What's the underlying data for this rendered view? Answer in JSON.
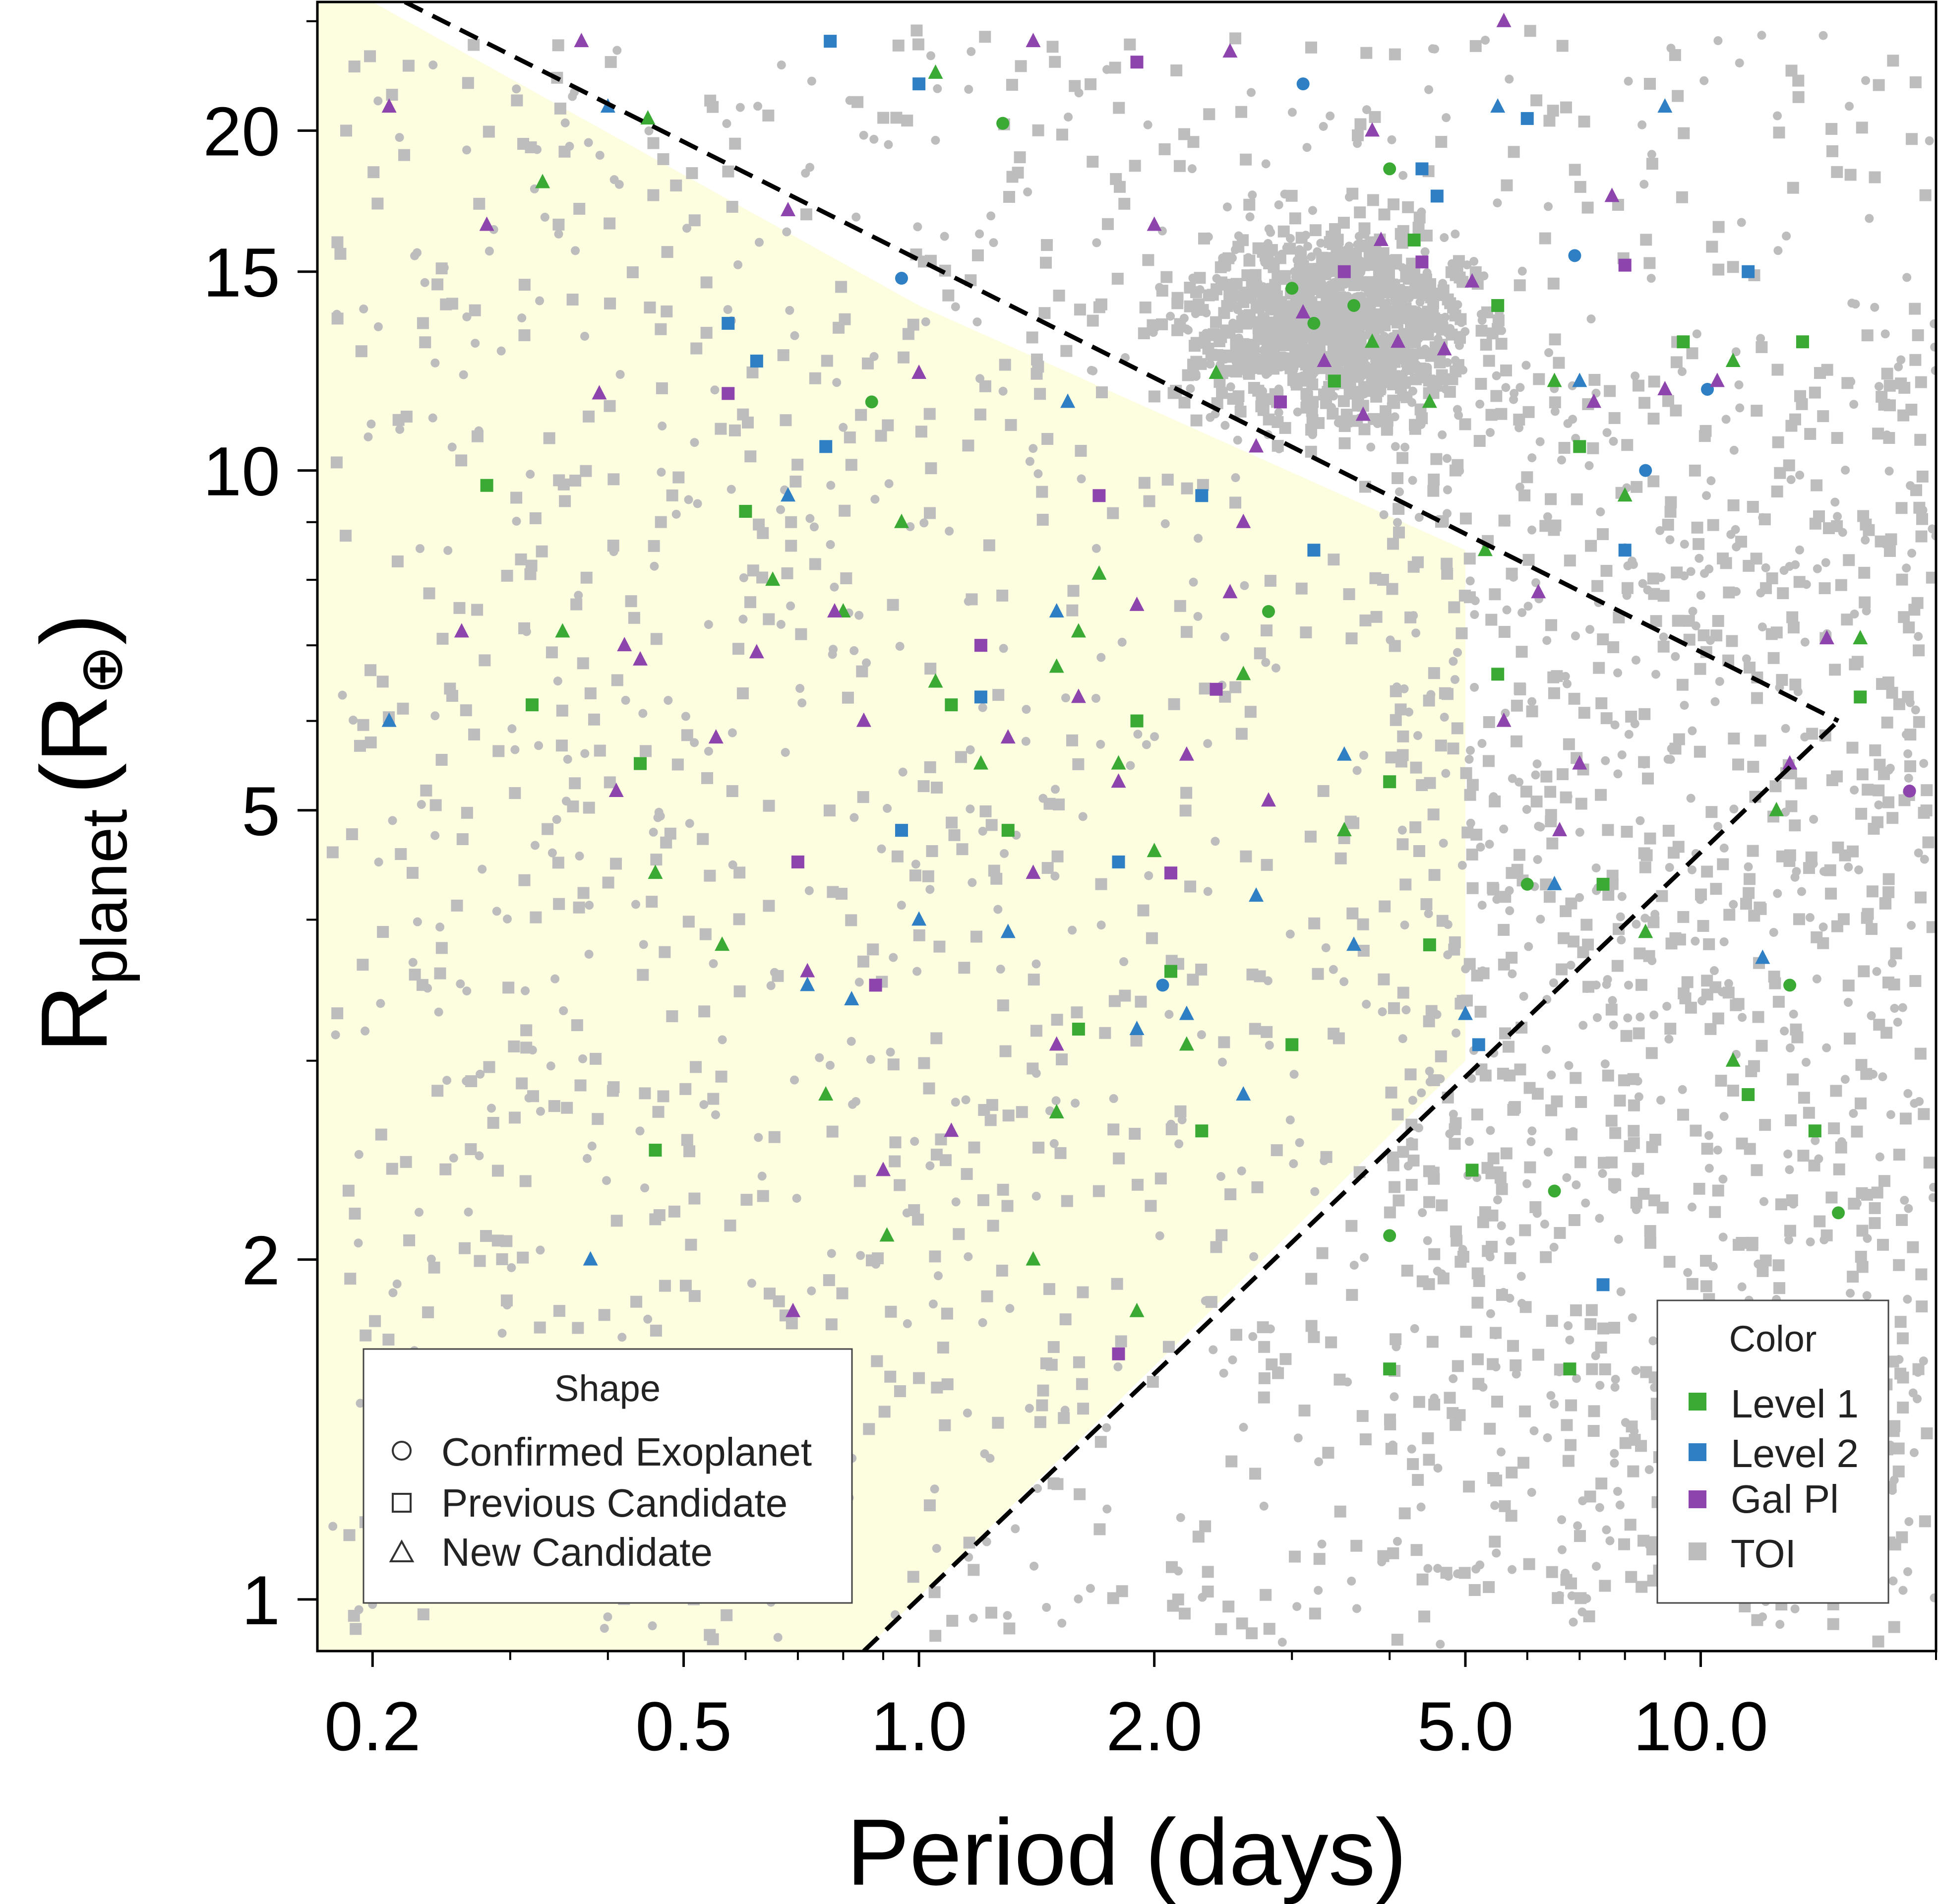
{
  "chart_data": {
    "type": "scatter",
    "xlabel": "Period (days)",
    "ylabel_main": "R",
    "ylabel_sub": "planet",
    "ylabel_unit_open": "(R",
    "ylabel_unit_sym": "⊕",
    "ylabel_unit_close": ")",
    "x_scale": "log",
    "y_scale": "log",
    "xlim": [
      0.17,
      20
    ],
    "ylim": [
      0.9,
      26
    ],
    "x_ticks": [
      0.2,
      0.5,
      1.0,
      2.0,
      5.0,
      10.0
    ],
    "x_tick_labels": [
      "0.2",
      "0.5",
      "1.0",
      "2.0",
      "5.0",
      "10.0"
    ],
    "y_ticks": [
      1,
      2,
      5,
      10,
      15,
      20
    ],
    "y_tick_labels": [
      "1",
      "2",
      "5",
      "10",
      "15",
      "20"
    ],
    "shaded_region_polygon": [
      [
        0.17,
        0.9
      ],
      [
        0.17,
        26
      ],
      [
        0.2,
        26
      ],
      [
        1.0,
        14
      ],
      [
        5.0,
        8.5
      ],
      [
        5.0,
        3.0
      ],
      [
        0.85,
        0.9
      ]
    ],
    "dashed_lines": [
      {
        "name": "upper-boundary",
        "points": [
          [
            0.22,
            26
          ],
          [
            15.0,
            6.0
          ]
        ]
      },
      {
        "name": "lower-boundary",
        "points": [
          [
            0.85,
            0.9
          ],
          [
            15.0,
            6.0
          ]
        ]
      }
    ],
    "series": [
      {
        "name": "Level 1",
        "color": "#3aaa35",
        "points": [
          [
            0.45,
            20.5,
            "tri"
          ],
          [
            0.33,
            18,
            "tri"
          ],
          [
            1.28,
            20.3,
            "circ"
          ],
          [
            1.05,
            22.5,
            "tri"
          ],
          [
            0.28,
            9.7,
            "sq"
          ],
          [
            0.32,
            6.2,
            "sq"
          ],
          [
            0.35,
            7.2,
            "tri"
          ],
          [
            0.44,
            5.5,
            "sq"
          ],
          [
            0.46,
            4.4,
            "tri"
          ],
          [
            0.56,
            3.8,
            "tri"
          ],
          [
            0.6,
            9.2,
            "sq"
          ],
          [
            0.65,
            8.0,
            "tri"
          ],
          [
            0.8,
            7.5,
            "tri"
          ],
          [
            0.87,
            11.5,
            "circ"
          ],
          [
            0.95,
            9.0,
            "tri"
          ],
          [
            1.05,
            6.5,
            "tri"
          ],
          [
            1.1,
            6.2,
            "sq"
          ],
          [
            1.2,
            5.5,
            "tri"
          ],
          [
            1.3,
            4.8,
            "sq"
          ],
          [
            1.5,
            6.7,
            "tri"
          ],
          [
            1.6,
            7.2,
            "tri"
          ],
          [
            1.7,
            8.1,
            "tri"
          ],
          [
            1.8,
            5.5,
            "tri"
          ],
          [
            1.9,
            6.0,
            "sq"
          ],
          [
            2.0,
            4.6,
            "tri"
          ],
          [
            2.1,
            3.6,
            "sq"
          ],
          [
            2.2,
            3.1,
            "tri"
          ],
          [
            2.3,
            2.6,
            "sq"
          ],
          [
            1.6,
            3.2,
            "sq"
          ],
          [
            1.5,
            2.7,
            "tri"
          ],
          [
            0.76,
            2.8,
            "tri"
          ],
          [
            0.91,
            2.1,
            "tri"
          ],
          [
            1.4,
            2.0,
            "tri"
          ],
          [
            1.9,
            1.8,
            "tri"
          ],
          [
            0.46,
            2.5,
            "sq"
          ],
          [
            2.6,
            6.6,
            "tri"
          ],
          [
            2.8,
            7.5,
            "circ"
          ],
          [
            3.0,
            3.1,
            "sq"
          ],
          [
            3.5,
            4.8,
            "tri"
          ],
          [
            4.0,
            5.3,
            "sq"
          ],
          [
            4.5,
            3.8,
            "sq"
          ],
          [
            5.1,
            2.4,
            "sq"
          ],
          [
            5.5,
            6.6,
            "sq"
          ],
          [
            6.0,
            4.3,
            "circ"
          ],
          [
            6.5,
            2.3,
            "circ"
          ],
          [
            6.8,
            1.6,
            "sq"
          ],
          [
            7.5,
            4.3,
            "sq"
          ],
          [
            8.5,
            3.9,
            "tri"
          ],
          [
            11.0,
            3.0,
            "tri"
          ],
          [
            11.5,
            2.8,
            "sq"
          ],
          [
            13.0,
            3.5,
            "circ"
          ],
          [
            14.0,
            2.6,
            "sq"
          ],
          [
            15.0,
            2.2,
            "circ"
          ],
          [
            4.0,
            1.6,
            "sq"
          ],
          [
            4.0,
            2.1,
            "circ"
          ],
          [
            2.4,
            12.2,
            "tri"
          ],
          [
            3.0,
            14.5,
            "circ"
          ],
          [
            3.2,
            13.5,
            "circ"
          ],
          [
            3.4,
            12.0,
            "sq"
          ],
          [
            3.6,
            14.0,
            "circ"
          ],
          [
            3.8,
            13.0,
            "tri"
          ],
          [
            4.0,
            18.5,
            "circ"
          ],
          [
            4.3,
            16.0,
            "sq"
          ],
          [
            4.5,
            11.5,
            "tri"
          ],
          [
            5.5,
            14.0,
            "sq"
          ],
          [
            6.5,
            12.0,
            "tri"
          ],
          [
            7.0,
            10.5,
            "sq"
          ],
          [
            8.0,
            9.5,
            "tri"
          ],
          [
            9.5,
            13.0,
            "sq"
          ],
          [
            11.0,
            12.5,
            "tri"
          ],
          [
            13.5,
            13.0,
            "sq"
          ],
          [
            16.0,
            6.3,
            "sq"
          ],
          [
            16.0,
            7.1,
            "tri"
          ],
          [
            12.5,
            5.0,
            "tri"
          ],
          [
            5.3,
            8.5,
            "tri"
          ]
        ]
      },
      {
        "name": "Level 2",
        "color": "#2e7fc4",
        "points": [
          [
            0.21,
            6.0,
            "tri"
          ],
          [
            0.4,
            21,
            "tri"
          ],
          [
            0.38,
            2.0,
            "tri"
          ],
          [
            0.57,
            13.5,
            "sq"
          ],
          [
            0.62,
            12.5,
            "sq"
          ],
          [
            0.68,
            9.5,
            "tri"
          ],
          [
            0.72,
            3.5,
            "tri"
          ],
          [
            0.76,
            10.5,
            "sq"
          ],
          [
            0.82,
            3.4,
            "tri"
          ],
          [
            0.95,
            4.8,
            "sq"
          ],
          [
            0.95,
            14.8,
            "circ"
          ],
          [
            1.0,
            4.0,
            "tri"
          ],
          [
            1.2,
            6.3,
            "sq"
          ],
          [
            1.3,
            3.9,
            "tri"
          ],
          [
            1.5,
            7.5,
            "tri"
          ],
          [
            1.55,
            11.5,
            "tri"
          ],
          [
            1.8,
            4.5,
            "sq"
          ],
          [
            1.9,
            3.2,
            "tri"
          ],
          [
            2.05,
            3.5,
            "circ"
          ],
          [
            2.2,
            3.3,
            "tri"
          ],
          [
            2.3,
            9.5,
            "sq"
          ],
          [
            2.6,
            2.8,
            "tri"
          ],
          [
            2.7,
            4.2,
            "tri"
          ],
          [
            3.2,
            8.5,
            "sq"
          ],
          [
            3.5,
            5.6,
            "tri"
          ],
          [
            3.6,
            3.8,
            "tri"
          ],
          [
            4.4,
            18.5,
            "sq"
          ],
          [
            4.6,
            17.5,
            "sq"
          ],
          [
            5.5,
            21,
            "tri"
          ],
          [
            5.0,
            3.3,
            "tri"
          ],
          [
            5.2,
            3.1,
            "sq"
          ],
          [
            6.5,
            4.3,
            "tri"
          ],
          [
            6.0,
            20.5,
            "sq"
          ],
          [
            6.9,
            15.5,
            "circ"
          ],
          [
            7.0,
            12.0,
            "tri"
          ],
          [
            8.0,
            8.5,
            "sq"
          ],
          [
            8.5,
            10.0,
            "circ"
          ],
          [
            9.0,
            21,
            "tri"
          ],
          [
            10.2,
            11.8,
            "circ"
          ],
          [
            11.5,
            15.0,
            "sq"
          ],
          [
            12.0,
            3.7,
            "tri"
          ],
          [
            7.5,
            1.9,
            "sq"
          ],
          [
            0.77,
            24,
            "sq"
          ],
          [
            1.0,
            22,
            "sq"
          ],
          [
            3.1,
            22,
            "circ"
          ]
        ]
      },
      {
        "name": "Gal Pl",
        "color": "#8e44ad",
        "points": [
          [
            0.21,
            21,
            "tri"
          ],
          [
            0.28,
            16.5,
            "tri"
          ],
          [
            0.26,
            7.2,
            "tri"
          ],
          [
            0.39,
            11.7,
            "tri"
          ],
          [
            0.42,
            7.0,
            "tri"
          ],
          [
            0.44,
            6.8,
            "tri"
          ],
          [
            0.41,
            5.2,
            "tri"
          ],
          [
            0.55,
            5.8,
            "tri"
          ],
          [
            0.57,
            11.7,
            "sq"
          ],
          [
            0.62,
            6.9,
            "tri"
          ],
          [
            0.68,
            17,
            "tri"
          ],
          [
            0.7,
            4.5,
            "sq"
          ],
          [
            0.72,
            3.6,
            "tri"
          ],
          [
            0.78,
            7.5,
            "tri"
          ],
          [
            0.85,
            6.0,
            "tri"
          ],
          [
            0.88,
            3.5,
            "sq"
          ],
          [
            0.9,
            2.4,
            "tri"
          ],
          [
            1.0,
            12.2,
            "tri"
          ],
          [
            1.1,
            2.6,
            "tri"
          ],
          [
            1.2,
            7.0,
            "sq"
          ],
          [
            1.3,
            5.8,
            "tri"
          ],
          [
            1.4,
            4.4,
            "tri"
          ],
          [
            1.5,
            3.1,
            "tri"
          ],
          [
            1.6,
            6.3,
            "tri"
          ],
          [
            1.7,
            9.5,
            "sq"
          ],
          [
            1.8,
            5.3,
            "tri"
          ],
          [
            1.9,
            7.6,
            "tri"
          ],
          [
            2.0,
            16.5,
            "tri"
          ],
          [
            2.1,
            4.4,
            "sq"
          ],
          [
            2.2,
            5.6,
            "tri"
          ],
          [
            2.4,
            6.4,
            "sq"
          ],
          [
            2.5,
            7.8,
            "tri"
          ],
          [
            2.6,
            9.0,
            "tri"
          ],
          [
            2.7,
            10.5,
            "tri"
          ],
          [
            2.8,
            5.1,
            "tri"
          ],
          [
            2.9,
            11.5,
            "sq"
          ],
          [
            3.1,
            13.8,
            "tri"
          ],
          [
            3.3,
            12.5,
            "tri"
          ],
          [
            3.5,
            15.0,
            "sq"
          ],
          [
            3.7,
            11.2,
            "tri"
          ],
          [
            3.9,
            16.0,
            "tri"
          ],
          [
            4.1,
            13.0,
            "tri"
          ],
          [
            4.4,
            15.3,
            "sq"
          ],
          [
            4.7,
            12.8,
            "tri"
          ],
          [
            5.1,
            14.7,
            "tri"
          ],
          [
            5.6,
            6.0,
            "tri"
          ],
          [
            6.2,
            7.8,
            "tri"
          ],
          [
            6.6,
            4.8,
            "tri"
          ],
          [
            7.0,
            5.5,
            "tri"
          ],
          [
            7.3,
            11.5,
            "tri"
          ],
          [
            8.0,
            15.2,
            "sq"
          ],
          [
            9.0,
            11.8,
            "tri"
          ],
          [
            10.5,
            12.0,
            "tri"
          ],
          [
            13.0,
            5.5,
            "tri"
          ],
          [
            14.5,
            7.1,
            "tri"
          ],
          [
            18.5,
            5.2,
            "circ"
          ],
          [
            0.69,
            1.8,
            "tri"
          ],
          [
            1.8,
            1.65,
            "sq"
          ],
          [
            0.37,
            24,
            "tri"
          ],
          [
            1.4,
            24,
            "tri"
          ],
          [
            1.9,
            23,
            "sq"
          ],
          [
            2.5,
            23.5,
            "tri"
          ],
          [
            3.8,
            20,
            "tri"
          ],
          [
            5.6,
            25,
            "tri"
          ],
          [
            7.7,
            17.5,
            "tri"
          ]
        ]
      },
      {
        "name": "TOI",
        "color": "#bdbdbd",
        "points": []
      }
    ]
  },
  "legends": {
    "shape": {
      "title": "Shape",
      "items": [
        {
          "label": "Confirmed Exoplanet",
          "shape": "circle"
        },
        {
          "label": "Previous Candidate",
          "shape": "square"
        },
        {
          "label": "New Candidate",
          "shape": "triangle"
        }
      ]
    },
    "color": {
      "title": "Color",
      "items": [
        {
          "label": "Level 1",
          "color": "#3aaa35"
        },
        {
          "label": "Level 2",
          "color": "#2e7fc4"
        },
        {
          "label": "Gal Pl",
          "color": "#8e44ad"
        },
        {
          "label": "TOI",
          "color": "#bdbdbd"
        }
      ]
    }
  },
  "colors": {
    "shaded_region": "#fdfde0",
    "toi_gray": "#bdbdbd",
    "axis": "#000000"
  }
}
